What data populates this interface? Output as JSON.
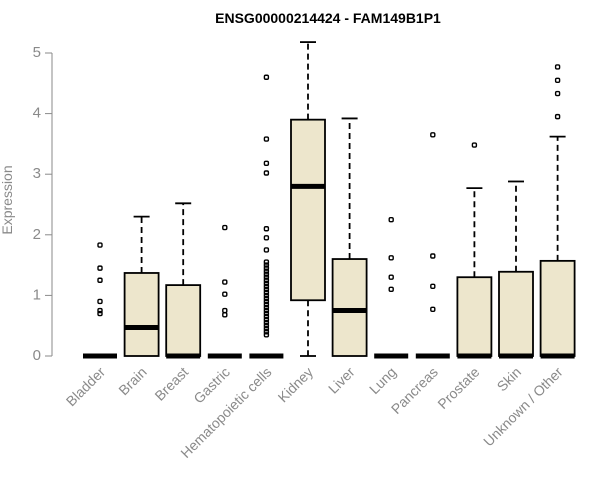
{
  "chart_data": {
    "type": "box",
    "title": "ENSG00000214424 - FAM149B1P1",
    "ylabel": "Expression",
    "xlabel": "",
    "ylim": [
      0,
      5.2
    ],
    "yticks": [
      0,
      1,
      2,
      3,
      4,
      5
    ],
    "box_fill": "#ede6cc",
    "box_stroke": "#000000",
    "grid": false,
    "categories": [
      "Bladder",
      "Brain",
      "Breast",
      "Gastric",
      "Hematopoietic cells",
      "Kidney",
      "Liver",
      "Lung",
      "Pancreas",
      "Prostate",
      "Skin",
      "Unknown / Other"
    ],
    "boxes": [
      {
        "min": 0,
        "q1": 0,
        "median": 0,
        "q3": 0,
        "max": 0,
        "outliers": [
          0.7,
          0.75,
          0.9,
          1.25,
          1.45,
          1.83
        ]
      },
      {
        "min": 0,
        "q1": 0,
        "median": 0.47,
        "q3": 1.37,
        "max": 2.3,
        "outliers": []
      },
      {
        "min": 0,
        "q1": 0,
        "median": 0,
        "q3": 1.17,
        "max": 2.52,
        "outliers": []
      },
      {
        "min": 0,
        "q1": 0,
        "median": 0,
        "q3": 0,
        "max": 0,
        "outliers": [
          0.68,
          0.75,
          1.02,
          1.22,
          2.12
        ]
      },
      {
        "min": 0,
        "q1": 0,
        "median": 0,
        "q3": 0,
        "max": 0,
        "outliers": [
          0.35,
          0.4,
          0.45,
          0.5,
          0.55,
          0.6,
          0.65,
          0.7,
          0.75,
          0.8,
          0.85,
          0.9,
          0.95,
          1.0,
          1.05,
          1.1,
          1.15,
          1.2,
          1.25,
          1.3,
          1.35,
          1.4,
          1.45,
          1.5,
          1.55,
          1.75,
          1.95,
          2.1,
          3.02,
          3.18,
          3.58,
          4.6
        ]
      },
      {
        "min": 0,
        "q1": 0.92,
        "median": 2.8,
        "q3": 3.9,
        "max": 5.18,
        "outliers": []
      },
      {
        "min": 0,
        "q1": 0,
        "median": 0.75,
        "q3": 1.6,
        "max": 3.92,
        "outliers": []
      },
      {
        "min": 0,
        "q1": 0,
        "median": 0,
        "q3": 0,
        "max": 0,
        "outliers": [
          1.1,
          1.3,
          1.62,
          2.25
        ]
      },
      {
        "min": 0,
        "q1": 0,
        "median": 0,
        "q3": 0,
        "max": 0,
        "outliers": [
          0.77,
          1.15,
          1.65,
          3.65
        ]
      },
      {
        "min": 0,
        "q1": 0,
        "median": 0,
        "q3": 1.3,
        "max": 2.77,
        "outliers": [
          3.48
        ]
      },
      {
        "min": 0,
        "q1": 0,
        "median": 0,
        "q3": 1.39,
        "max": 2.88,
        "outliers": []
      },
      {
        "min": 0,
        "q1": 0,
        "median": 0,
        "q3": 1.57,
        "max": 3.62,
        "outliers": [
          3.95,
          4.33,
          4.55,
          4.77
        ]
      }
    ]
  }
}
